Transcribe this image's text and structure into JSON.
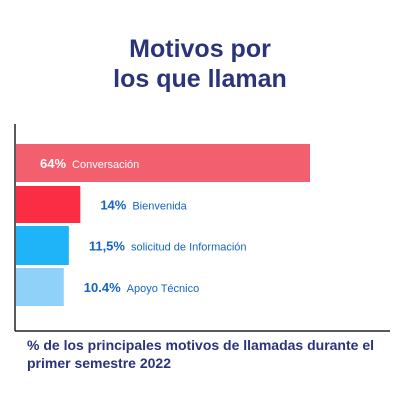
{
  "title": {
    "line1": "Motivos por",
    "line2": "los que llaman"
  },
  "footnote": "% de los principales motivos de llamadas durante el primer semestre 2022",
  "chart_data": {
    "type": "bar",
    "orientation": "horizontal",
    "categories": [
      "Conversación",
      "Bienvenida",
      "solicitud de Información",
      "Apoyo Técnico"
    ],
    "values": [
      64,
      14,
      11.5,
      10.4
    ],
    "value_labels": [
      "64%",
      "14%",
      "11,5%",
      "10.4%"
    ],
    "colors": [
      "#f25f6e",
      "#fb2d45",
      "#1fb3f8",
      "#8fd1f8"
    ],
    "label_colors": [
      "#ffffff",
      "#1565c0",
      "#1565c0",
      "#1565c0"
    ],
    "xlim": [
      0,
      100
    ],
    "title": "Motivos por los que llaman",
    "xlabel": "",
    "ylabel": "",
    "grid": false,
    "legend": "none"
  }
}
